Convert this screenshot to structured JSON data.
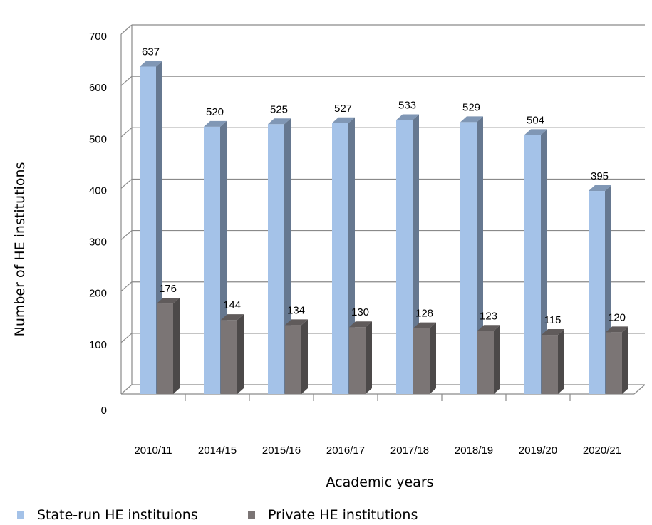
{
  "chart_data": {
    "type": "bar",
    "title": "",
    "xlabel": "Academic years",
    "ylabel": "Number of HE institutions",
    "ylim": [
      0,
      700
    ],
    "yticks": [
      0,
      100,
      200,
      300,
      400,
      500,
      600,
      700
    ],
    "grid": true,
    "legend_position": "bottom-left",
    "categories": [
      "2010/11",
      "2014/15",
      "2015/16",
      "2016/17",
      "2017/18",
      "2018/19",
      "2019/20",
      "2020/21"
    ],
    "series": [
      {
        "name": "State-run HE instituions",
        "color": "#a4c2e8",
        "values": [
          637,
          520,
          525,
          527,
          533,
          529,
          504,
          395
        ]
      },
      {
        "name": "Private HE institutions",
        "color": "#7b7575",
        "values": [
          176,
          144,
          134,
          130,
          128,
          123,
          115,
          120
        ]
      }
    ]
  }
}
